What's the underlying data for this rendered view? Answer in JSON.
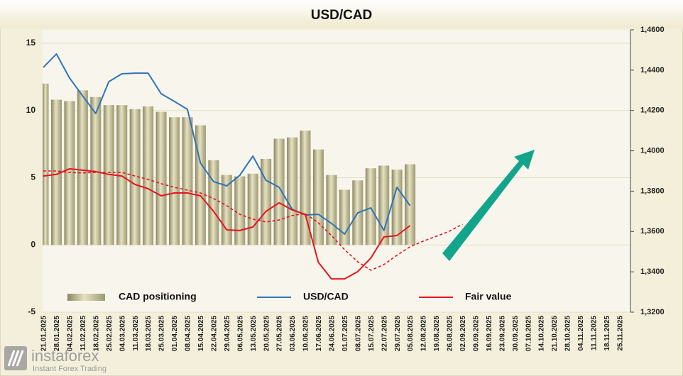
{
  "chart_data": {
    "type": "combo",
    "title": "USD/CAD",
    "categories": [
      "21.01.2025",
      "28.01.2025",
      "04.02.2025",
      "11.02.2025",
      "18.02.2025",
      "25.02.2025",
      "04.03.2025",
      "11.03.2025",
      "18.03.2025",
      "25.03.2025",
      "01.04.2025",
      "08.04.2025",
      "15.04.2025",
      "22.04.2025",
      "29.04.2025",
      "06.05.2025",
      "13.05.2025",
      "20.05.2025",
      "27.05.2025",
      "03.06.2025",
      "10.06.2025",
      "17.06.2025",
      "24.06.2025",
      "01.07.2025",
      "08.07.2025",
      "15.07.2025",
      "22.07.2025",
      "29.07.2025",
      "05.08.2025",
      "12.08.2025",
      "19.08.2025",
      "26.08.2025",
      "02.09.2025",
      "09.09.2025",
      "16.09.2025",
      "23.09.2025",
      "30.09.2025",
      "07.10.2025",
      "14.10.2025",
      "21.10.2025",
      "28.10.2025",
      "04.11.2025",
      "11.11.2025",
      "18.11.2025",
      "25.11.2025"
    ],
    "series": [
      {
        "name": "CAD positioning",
        "type": "bar",
        "color": "#c9c49c",
        "values": [
          12.0,
          10.8,
          10.7,
          11.5,
          11.0,
          10.4,
          10.4,
          10.1,
          10.3,
          9.9,
          9.5,
          9.5,
          8.9,
          6.3,
          5.2,
          5.1,
          5.3,
          6.4,
          7.9,
          8.0,
          8.5,
          7.1,
          5.2,
          4.1,
          4.8,
          5.7,
          5.9,
          5.6,
          6.0,
          null,
          null,
          null,
          null,
          null,
          null,
          null,
          null,
          null,
          null,
          null,
          null,
          null,
          null,
          null,
          null
        ]
      },
      {
        "name": "USD/CAD",
        "type": "line",
        "axis": "y2",
        "color": "#2e75b6",
        "values": [
          1.4414,
          1.448,
          1.4361,
          1.4273,
          1.4185,
          1.4343,
          1.4382,
          1.4385,
          1.4385,
          1.4283,
          1.4245,
          1.4206,
          1.3939,
          1.3847,
          1.3826,
          1.3879,
          1.3974,
          1.3854,
          1.3819,
          1.371,
          1.3682,
          1.3685,
          1.364,
          1.3587,
          1.3692,
          1.3717,
          1.3605,
          1.3819,
          1.3728,
          null,
          null,
          null,
          null,
          null,
          null,
          null,
          null,
          null,
          null,
          null,
          null,
          null,
          null,
          null,
          null
        ]
      },
      {
        "name": "Fair value",
        "type": "line",
        "axis": "y2",
        "color": "#e8141c",
        "values": [
          1.3875,
          1.3883,
          1.3911,
          1.3904,
          1.3897,
          1.3883,
          1.3875,
          1.3833,
          1.3812,
          1.3777,
          1.3791,
          1.3791,
          1.3777,
          1.37,
          1.3608,
          1.3605,
          1.3622,
          1.37,
          1.3742,
          1.3707,
          1.3685,
          1.3447,
          1.3365,
          1.3365,
          1.3401,
          1.3468,
          1.3573,
          1.358,
          1.3629,
          null,
          null,
          null,
          null,
          null,
          null,
          null,
          null,
          null,
          null,
          null,
          null,
          null,
          null,
          null,
          null
        ]
      },
      {
        "type": "line",
        "axis": "y2",
        "color": "#e8141c",
        "dash": true,
        "values": [
          1.39,
          1.39,
          1.3893,
          1.389,
          1.3893,
          1.3893,
          1.3893,
          1.3875,
          1.3858,
          1.3837,
          1.3819,
          1.3805,
          1.3791,
          1.3763,
          1.3728,
          1.3685,
          1.3661,
          1.3647,
          1.3657,
          1.3679,
          1.3689,
          1.3643,
          1.358,
          1.351,
          1.345,
          1.3408,
          1.3436,
          1.3482,
          1.3524,
          1.3552,
          1.3576,
          1.3601,
          1.3636,
          null,
          null,
          null,
          null,
          null,
          null,
          null,
          null,
          null,
          null,
          null,
          null
        ]
      }
    ],
    "ylim": [
      -5,
      16
    ],
    "yticks": [
      -5,
      0,
      5,
      10,
      15
    ],
    "y2lim": [
      1.32,
      1.46
    ],
    "y2ticks": [
      {
        "value": 1.32,
        "label": "1,3200"
      },
      {
        "value": 1.34,
        "label": "1,3400"
      },
      {
        "value": 1.36,
        "label": "1,3600"
      },
      {
        "value": 1.38,
        "label": "1,3800"
      },
      {
        "value": 1.4,
        "label": "1,4000"
      },
      {
        "value": 1.42,
        "label": "1,4200"
      },
      {
        "value": 1.44,
        "label": "1,4400"
      },
      {
        "value": 1.46,
        "label": "1,4600"
      }
    ],
    "grid": true,
    "legend": "bottom"
  },
  "watermark": {
    "brand": "instaforex",
    "tagline": "Instant Forex Trading"
  }
}
